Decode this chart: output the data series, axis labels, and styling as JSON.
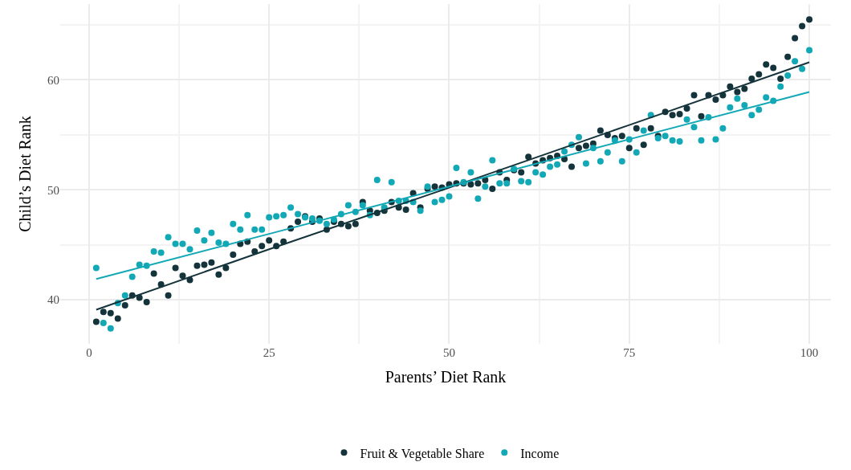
{
  "chart_data": {
    "type": "scatter",
    "xlabel": "Parents’ Diet Rank",
    "ylabel": "Child’s Diet Rank",
    "xlim": [
      -4,
      103
    ],
    "ylim": [
      36,
      66.9
    ],
    "xticks": [
      0,
      25,
      50,
      75,
      100
    ],
    "yticks": [
      40,
      50,
      60
    ],
    "grid": true,
    "legend": "bottom",
    "x": [
      1,
      2,
      3,
      4,
      5,
      6,
      7,
      8,
      9,
      10,
      11,
      12,
      13,
      14,
      15,
      16,
      17,
      18,
      19,
      20,
      21,
      22,
      23,
      24,
      25,
      26,
      27,
      28,
      29,
      30,
      31,
      32,
      33,
      34,
      35,
      36,
      37,
      38,
      39,
      40,
      41,
      42,
      43,
      44,
      45,
      46,
      47,
      48,
      49,
      50,
      51,
      52,
      53,
      54,
      55,
      56,
      57,
      58,
      59,
      60,
      61,
      62,
      63,
      64,
      65,
      66,
      67,
      68,
      69,
      70,
      71,
      72,
      73,
      74,
      75,
      76,
      77,
      78,
      79,
      80,
      81,
      82,
      83,
      84,
      85,
      86,
      87,
      88,
      89,
      90,
      91,
      92,
      93,
      94,
      95,
      96,
      97,
      98,
      99,
      100
    ],
    "series": [
      {
        "name": "Fruit & Vegetable Share",
        "color": "#14333b",
        "marker": "circle",
        "values": [
          38.0,
          38.9,
          38.8,
          38.3,
          39.5,
          40.4,
          40.2,
          39.8,
          42.4,
          41.4,
          40.4,
          42.9,
          42.2,
          41.8,
          43.1,
          43.2,
          43.4,
          42.3,
          42.9,
          44.1,
          45.1,
          45.3,
          44.4,
          44.9,
          45.4,
          44.9,
          45.3,
          46.5,
          47.1,
          47.6,
          47.1,
          47.4,
          46.4,
          47.1,
          46.9,
          46.7,
          46.9,
          48.9,
          48.1,
          47.9,
          48.1,
          48.9,
          48.4,
          48.2,
          49.7,
          48.4,
          50.1,
          50.3,
          50.2,
          50.5,
          50.6,
          50.6,
          50.5,
          50.6,
          50.9,
          50.1,
          51.6,
          50.9,
          51.8,
          51.6,
          53.0,
          52.4,
          52.7,
          52.9,
          53.1,
          52.8,
          52.1,
          53.8,
          54.0,
          54.2,
          55.4,
          55.0,
          54.7,
          54.9,
          53.8,
          55.6,
          54.1,
          55.6,
          54.9,
          57.1,
          56.8,
          56.9,
          57.4,
          58.6,
          56.7,
          58.6,
          58.2,
          58.6,
          59.4,
          58.9,
          59.2,
          60.1,
          60.5,
          61.4,
          61.1,
          60.1,
          62.1,
          63.8,
          64.9,
          65.5
        ]
      },
      {
        "name": "Income",
        "color": "#12a8b5",
        "marker": "circle",
        "values": [
          42.9,
          37.9,
          37.4,
          39.7,
          40.4,
          42.1,
          43.2,
          43.1,
          44.4,
          44.3,
          45.7,
          45.1,
          45.1,
          44.6,
          46.3,
          45.4,
          46.1,
          45.2,
          45.1,
          46.9,
          46.4,
          47.7,
          46.4,
          46.4,
          47.5,
          47.6,
          47.7,
          48.4,
          47.8,
          47.5,
          47.4,
          47.2,
          46.9,
          47.3,
          47.8,
          48.6,
          48.0,
          48.6,
          47.7,
          50.9,
          48.4,
          50.7,
          49.0,
          49.0,
          48.9,
          48.1,
          50.3,
          48.9,
          49.1,
          49.4,
          52.0,
          50.7,
          51.6,
          49.2,
          50.3,
          52.7,
          50.6,
          50.6,
          51.9,
          50.8,
          50.7,
          51.6,
          51.4,
          52.1,
          52.3,
          53.5,
          54.1,
          54.8,
          52.4,
          53.8,
          52.6,
          53.4,
          54.5,
          52.6,
          54.6,
          53.4,
          55.4,
          56.8,
          54.7,
          54.9,
          54.5,
          54.4,
          56.4,
          55.7,
          54.5,
          56.6,
          54.6,
          55.6,
          57.5,
          58.3,
          57.7,
          56.8,
          57.3,
          58.4,
          58.1,
          59.4,
          60.4,
          61.7,
          61.0,
          62.7
        ]
      },
      {
        "type": "line",
        "color": "#14333b",
        "marker": "none",
        "x": [
          1,
          25,
          50,
          75,
          100
        ],
        "values": [
          39.1,
          44.6,
          50.2,
          55.9,
          61.6
        ]
      },
      {
        "type": "line",
        "color": "#12a8b5",
        "marker": "none",
        "x": [
          1,
          25,
          50,
          75,
          100
        ],
        "values": [
          41.9,
          46.0,
          50.3,
          54.6,
          58.9
        ]
      }
    ]
  }
}
